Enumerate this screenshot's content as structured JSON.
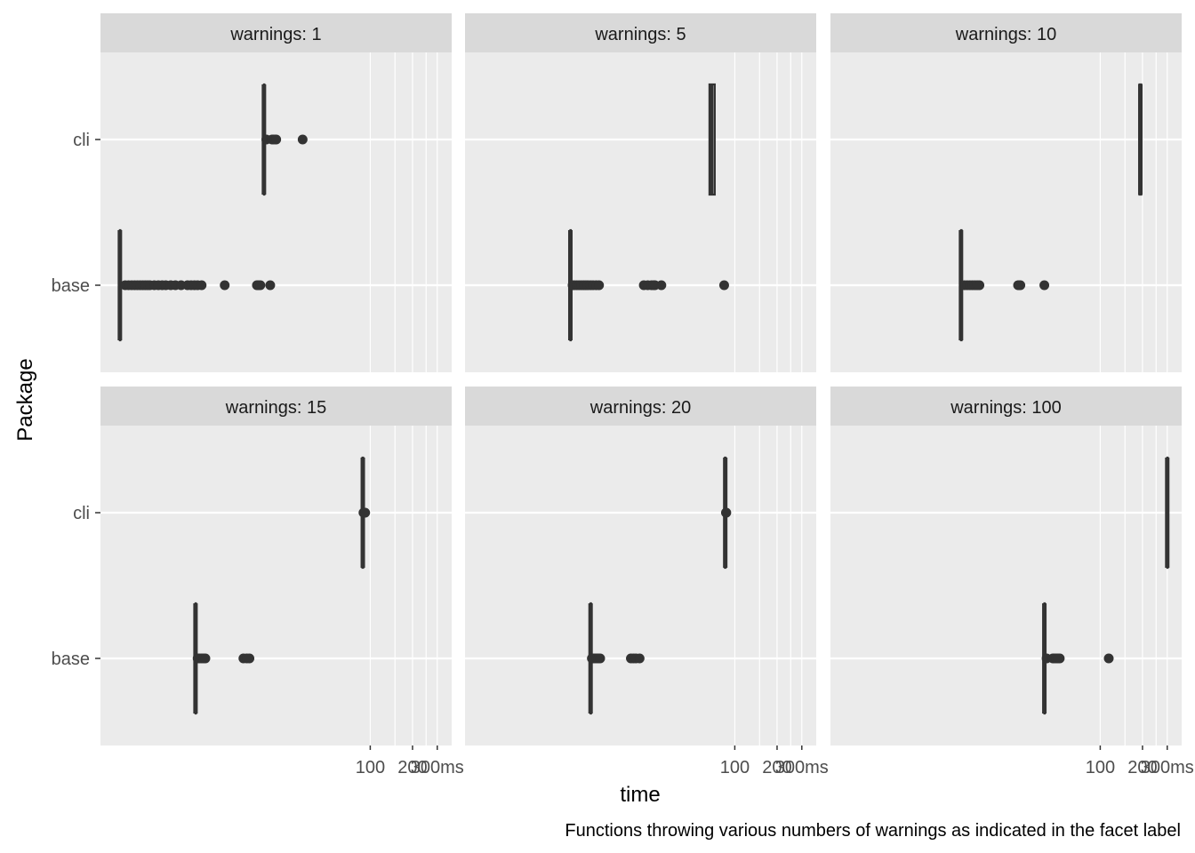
{
  "chart_data": {
    "type": "boxplot",
    "facet_prefix": "warnings: ",
    "xlabel": "time",
    "ylabel": "Package",
    "caption": "Functions throwing various numbers of warnings as indicated in the facet label",
    "x_scale": "log10",
    "x_ticks": [
      {
        "value": 100,
        "label": "100"
      },
      {
        "value": 200,
        "label": "200"
      },
      {
        "value": 300,
        "label": "300ms"
      }
    ],
    "x_minor_grid": [
      100,
      150,
      200,
      250,
      300
    ],
    "xlim": [
      1.2,
      380
    ],
    "categories": [
      "cli",
      "base"
    ],
    "grid": true,
    "panels": [
      {
        "label": "warnings: 1",
        "series": [
          {
            "name": "cli",
            "box": [
              17.5,
              17.5,
              17.5,
              17.6,
              17.6
            ],
            "outliers": [
              18.2,
              20,
              20.4,
              21,
              21.4,
              33
            ]
          },
          {
            "name": "base",
            "box": [
              1.65,
              1.65,
              1.65,
              1.66,
              1.67
            ],
            "outliers": [
              1.8,
              1.9,
              2,
              2.1,
              2.2,
              2.3,
              2.4,
              2.5,
              2.6,
              2.7,
              2.9,
              3.1,
              3.3,
              3.5,
              3.8,
              4.1,
              4.5,
              5.0,
              5.3,
              5.6,
              5.9,
              6.3,
              9.2,
              15.6,
              16,
              16.5,
              19.4
            ]
          }
        ]
      },
      {
        "label": "warnings: 5",
        "series": [
          {
            "name": "cli",
            "box": [
              66,
              66,
              68,
              72,
              72
            ],
            "outliers": []
          },
          {
            "name": "base",
            "box": [
              6.75,
              6.75,
              6.75,
              6.8,
              6.8
            ],
            "outliers": [
              7.0,
              7.2,
              7.5,
              7.8,
              8.1,
              8.4,
              8.7,
              9.0,
              9.4,
              9.8,
              10.3,
              10.8,
              22.5,
              24,
              25.5,
              26.5,
              27,
              30,
              84
            ]
          }
        ]
      },
      {
        "label": "warnings: 10",
        "series": [
          {
            "name": "cli",
            "box": [
              190,
              190,
              193,
              196,
              196
            ],
            "outliers": []
          },
          {
            "name": "base",
            "box": [
              10.2,
              10.2,
              10.2,
              10.3,
              10.3
            ],
            "outliers": [
              10.8,
              11.3,
              11.8,
              12.3,
              12.8,
              13.3,
              13.8,
              26,
              26.5,
              27,
              40
            ]
          }
        ]
      },
      {
        "label": "warnings: 15",
        "series": [
          {
            "name": "cli",
            "box": [
              88,
              88,
              88.5,
              89,
              89
            ],
            "outliers": [
              89.5,
              90,
              91,
              92
            ]
          },
          {
            "name": "base",
            "box": [
              5.7,
              5.7,
              5.7,
              5.72,
              5.72
            ],
            "outliers": [
              5.9,
              6.1,
              6.3,
              6.5,
              6.7,
              12.5,
              13.2,
              13.8
            ]
          }
        ]
      },
      {
        "label": "warnings: 20",
        "series": [
          {
            "name": "cli",
            "box": [
              85,
              85,
              85.5,
              86,
              86
            ],
            "outliers": [
              86.5,
              87
            ]
          },
          {
            "name": "base",
            "box": [
              9.4,
              9.4,
              9.4,
              9.45,
              9.45
            ],
            "outliers": [
              9.6,
              9.8,
              10.1,
              10.4,
              10.7,
              11.0,
              18.2,
              19,
              19.8,
              21
            ]
          }
        ]
      },
      {
        "label": "warnings: 100",
        "series": [
          {
            "name": "cli",
            "box": [
              300,
              300,
              300,
              301,
              301
            ],
            "outliers": []
          },
          {
            "name": "base",
            "box": [
              40,
              40,
              40,
              40.3,
              40.3
            ],
            "outliers": [
              41.5,
              46,
              47,
              48.5,
              50,
              51.5,
              115
            ]
          }
        ]
      }
    ]
  }
}
